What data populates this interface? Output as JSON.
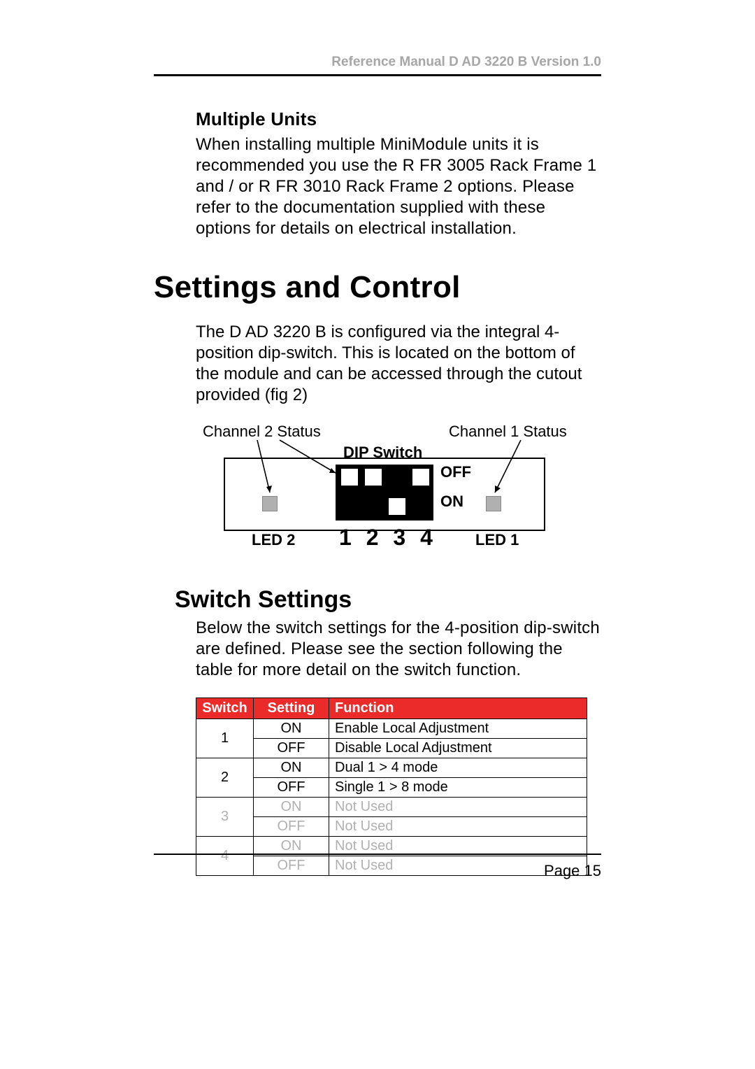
{
  "header": {
    "running_title": "Reference Manual D AD 3220 B Version 1.0"
  },
  "multiple_units": {
    "heading": "Multiple Units",
    "body": "When installing multiple MiniModule units it is recommended you use the R FR 3005 Rack Frame 1 and / or R FR 3010 Rack Frame 2 options. Please refer to the documentation supplied with these options for details on electrical installation."
  },
  "settings_control": {
    "heading": "Settings and Control",
    "intro": "The D AD 3220 B is configured via the integral 4-position dip-switch. This is located on the bottom of the module and can be accessed through the cutout provided (fig 2)"
  },
  "diagram": {
    "ch2_label": "Channel 2 Status",
    "ch1_label": "Channel 1 Status",
    "dip_label": "DIP Switch",
    "off_label": "OFF",
    "on_label": "ON",
    "led2_label": "LED 2",
    "led1_label": "LED 1",
    "numbers": "1  2  3  4",
    "dip_positions": [
      "OFF",
      "OFF",
      "ON",
      "OFF"
    ],
    "led_color": "#b0b0b0",
    "dip_body_color": "#000000",
    "dip_slot_color": "#ffffff",
    "module_border_color": "#000000"
  },
  "switch_settings": {
    "heading": "Switch Settings",
    "intro": "Below the switch settings for the 4-position dip-switch are defined. Please see the section following the table for more detail on the switch function.",
    "table": {
      "header_bg": "#eb2a2a",
      "header_fg": "#ffffff",
      "dim_fg": "#b0b0b0",
      "columns": [
        "Switch",
        "Setting",
        "Function"
      ],
      "rows": [
        {
          "switch": "1",
          "setting": "ON",
          "function": "Enable Local Adjustment",
          "dim": false,
          "rowspan": 2
        },
        {
          "switch": "",
          "setting": "OFF",
          "function": "Disable Local Adjustment",
          "dim": false
        },
        {
          "switch": "2",
          "setting": "ON",
          "function": "Dual 1 > 4 mode",
          "dim": false,
          "rowspan": 2
        },
        {
          "switch": "",
          "setting": "OFF",
          "function": "Single 1 > 8 mode",
          "dim": false
        },
        {
          "switch": "3",
          "setting": "ON",
          "function": "Not Used",
          "dim": true,
          "rowspan": 2
        },
        {
          "switch": "",
          "setting": "OFF",
          "function": "Not Used",
          "dim": true
        },
        {
          "switch": "4",
          "setting": "ON",
          "function": "Not Used",
          "dim": true,
          "rowspan": 2
        },
        {
          "switch": "",
          "setting": "OFF",
          "function": "Not Used",
          "dim": true
        }
      ]
    }
  },
  "footer": {
    "page_label": "Page 15"
  }
}
